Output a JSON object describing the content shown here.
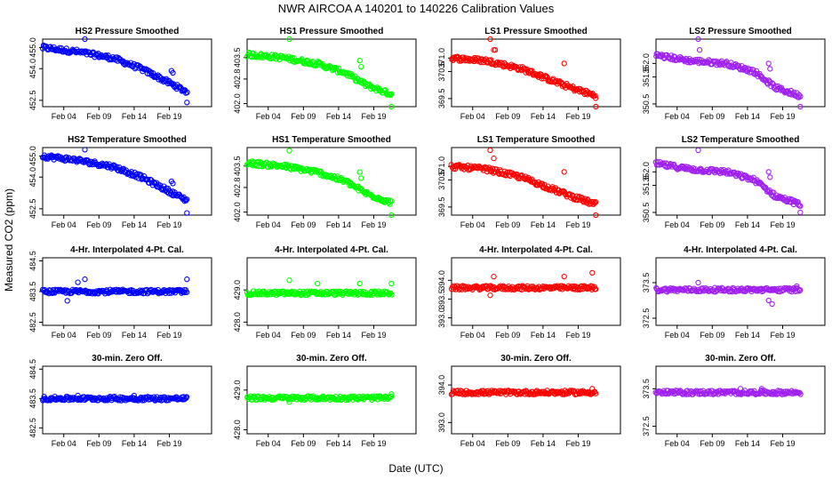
{
  "title": "NWR   AIRCOA A   140201 to 140226   Calibration Values",
  "xlabel": "Date (UTC)",
  "ylabel": "Measured CO2 (ppm)",
  "x_ticks": [
    "Feb 04",
    "Feb 09",
    "Feb 14",
    "Feb 19"
  ],
  "colors": {
    "HS2": "#0000ff",
    "HS1": "#00ff00",
    "LS1": "#ff0000",
    "LS2": "#a020f0",
    "frame": "#000000"
  },
  "chart_data": [
    {
      "type": "scatter",
      "id": "hs2-pressure",
      "title": "HS2 Pressure Smoothed",
      "tank": "HS2",
      "color": "#0000ff",
      "xlim": [
        0,
        24
      ],
      "ylim": [
        452.2,
        455.4
      ],
      "yticks": [
        452.5,
        454.0,
        455.0
      ],
      "ytick_labels": [
        "452.5",
        "454.0",
        "455.0"
      ],
      "series": {
        "name": "HS2",
        "x_range": [
          0,
          20.5
        ],
        "trend": [
          [
            0,
            455.0
          ],
          [
            5,
            454.8
          ],
          [
            10,
            454.5
          ],
          [
            14,
            454.0
          ],
          [
            17,
            453.5
          ],
          [
            20.5,
            452.9
          ]
        ],
        "outliers": [
          [
            6,
            455.4
          ],
          [
            18.3,
            453.9
          ],
          [
            18.5,
            453.8
          ],
          [
            20.5,
            452.4
          ]
        ]
      }
    },
    {
      "type": "scatter",
      "id": "hs1-pressure",
      "title": "HS1 Pressure Smoothed",
      "tank": "HS1",
      "color": "#00ff00",
      "xlim": [
        0,
        24
      ],
      "ylim": [
        401.9,
        404.1
      ],
      "yticks": [
        402.0,
        402.8,
        403.5
      ],
      "ytick_labels": [
        "402.0",
        "402.8",
        "403.5"
      ],
      "series": {
        "name": "HS1",
        "x_range": [
          0,
          20.5
        ],
        "trend": [
          [
            0,
            403.6
          ],
          [
            5,
            403.5
          ],
          [
            10,
            403.3
          ],
          [
            14,
            403.0
          ],
          [
            17,
            402.6
          ],
          [
            20.5,
            402.3
          ]
        ],
        "outliers": [
          [
            6,
            404.1
          ],
          [
            16,
            403.4
          ],
          [
            16.2,
            403.2
          ],
          [
            20.5,
            401.9
          ]
        ]
      }
    },
    {
      "type": "scatter",
      "id": "ls1-pressure",
      "title": "LS1 Pressure Smoothed",
      "tank": "LS1",
      "color": "#ff0000",
      "xlim": [
        0,
        24
      ],
      "ylim": [
        369.2,
        371.7
      ],
      "yticks": [
        369.5,
        370.5,
        371.0
      ],
      "ytick_labels": [
        "369.5",
        "370.5",
        "371.0"
      ],
      "series": {
        "name": "LS1",
        "x_range": [
          0,
          20.5
        ],
        "trend": [
          [
            0,
            371.0
          ],
          [
            5,
            370.9
          ],
          [
            10,
            370.6
          ],
          [
            14,
            370.2
          ],
          [
            17,
            369.9
          ],
          [
            20.5,
            369.6
          ]
        ],
        "outliers": [
          [
            5.5,
            371.7
          ],
          [
            6,
            371.3
          ],
          [
            6.2,
            371.3
          ],
          [
            16,
            370.8
          ],
          [
            20.5,
            369.2
          ]
        ]
      }
    },
    {
      "type": "scatter",
      "id": "ls2-pressure",
      "title": "LS2 Pressure Smoothed",
      "tank": "LS2",
      "color": "#a020f0",
      "xlim": [
        0,
        24
      ],
      "ylim": [
        350.4,
        352.9
      ],
      "yticks": [
        350.5,
        351.5,
        352.0
      ],
      "ytick_labels": [
        "350.5",
        "351.5",
        "352.0"
      ],
      "series": {
        "name": "LS2",
        "x_range": [
          0,
          20.5
        ],
        "trend": [
          [
            0,
            352.3
          ],
          [
            5,
            352.1
          ],
          [
            10,
            352.0
          ],
          [
            14,
            351.7
          ],
          [
            17,
            351.1
          ],
          [
            20.5,
            350.8
          ]
        ],
        "outliers": [
          [
            6,
            352.9
          ],
          [
            6.2,
            352.5
          ],
          [
            16,
            352.0
          ],
          [
            16.2,
            351.8
          ],
          [
            20.5,
            350.4
          ]
        ]
      }
    },
    {
      "type": "scatter",
      "id": "hs2-temperature",
      "title": "HS2 Temperature Smoothed",
      "tank": "HS2",
      "color": "#0000ff",
      "xlim": [
        0,
        24
      ],
      "ylim": [
        452.2,
        455.4
      ],
      "yticks": [
        452.5,
        454.0,
        455.0
      ],
      "ytick_labels": [
        "452.5",
        "454.0",
        "455.0"
      ],
      "series": {
        "name": "HS2",
        "x_range": [
          0,
          20.5
        ],
        "trend": [
          [
            0,
            455.0
          ],
          [
            5,
            454.8
          ],
          [
            10,
            454.5
          ],
          [
            14,
            454.0
          ],
          [
            17,
            453.5
          ],
          [
            20.5,
            452.9
          ]
        ],
        "outliers": [
          [
            6,
            455.3
          ],
          [
            18.3,
            453.8
          ],
          [
            18.5,
            453.7
          ],
          [
            20.5,
            452.3
          ]
        ]
      }
    },
    {
      "type": "scatter",
      "id": "hs1-temperature",
      "title": "HS1 Temperature Smoothed",
      "tank": "HS1",
      "color": "#00ff00",
      "xlim": [
        0,
        24
      ],
      "ylim": [
        401.9,
        404.1
      ],
      "yticks": [
        402.0,
        402.8,
        403.5
      ],
      "ytick_labels": [
        "402.0",
        "402.8",
        "403.5"
      ],
      "series": {
        "name": "HS1",
        "x_range": [
          0,
          20.5
        ],
        "trend": [
          [
            0,
            403.6
          ],
          [
            5,
            403.5
          ],
          [
            10,
            403.3
          ],
          [
            14,
            403.0
          ],
          [
            17,
            402.6
          ],
          [
            20.5,
            402.3
          ]
        ],
        "outliers": [
          [
            6,
            404.0
          ],
          [
            16,
            403.3
          ],
          [
            16.2,
            403.1
          ],
          [
            20.5,
            401.9
          ]
        ]
      }
    },
    {
      "type": "scatter",
      "id": "ls1-temperature",
      "title": "LS1 Temperature Smoothed",
      "tank": "LS1",
      "color": "#ff0000",
      "xlim": [
        0,
        24
      ],
      "ylim": [
        369.2,
        371.7
      ],
      "yticks": [
        369.5,
        370.5,
        371.0
      ],
      "ytick_labels": [
        "369.5",
        "370.5",
        "371.0"
      ],
      "series": {
        "name": "LS1",
        "x_range": [
          0,
          20.5
        ],
        "trend": [
          [
            0,
            371.0
          ],
          [
            5,
            370.9
          ],
          [
            10,
            370.6
          ],
          [
            14,
            370.2
          ],
          [
            17,
            369.9
          ],
          [
            20.5,
            369.6
          ]
        ],
        "outliers": [
          [
            5.5,
            371.6
          ],
          [
            6,
            371.3
          ],
          [
            16,
            370.8
          ],
          [
            20.5,
            369.2
          ]
        ]
      }
    },
    {
      "type": "scatter",
      "id": "ls2-temperature",
      "title": "LS2 Temperature Smoothed",
      "tank": "LS2",
      "color": "#a020f0",
      "xlim": [
        0,
        24
      ],
      "ylim": [
        350.4,
        352.9
      ],
      "yticks": [
        350.5,
        351.5,
        352.0
      ],
      "ytick_labels": [
        "350.5",
        "351.5",
        "352.0"
      ],
      "series": {
        "name": "LS2",
        "x_range": [
          0,
          20.5
        ],
        "trend": [
          [
            0,
            352.3
          ],
          [
            5,
            352.1
          ],
          [
            10,
            352.0
          ],
          [
            14,
            351.7
          ],
          [
            17,
            351.1
          ],
          [
            20.5,
            350.8
          ]
        ],
        "outliers": [
          [
            6,
            352.8
          ],
          [
            16,
            352.0
          ],
          [
            16.2,
            351.8
          ],
          [
            20.5,
            350.5
          ]
        ]
      }
    },
    {
      "type": "scatter",
      "id": "hs2-4pt",
      "title": "4-Hr. Interpolated 4-Pt. Cal.",
      "tank": "HS2",
      "color": "#0000ff",
      "xlim": [
        0,
        24
      ],
      "ylim": [
        482.4,
        484.6
      ],
      "yticks": [
        482.5,
        483.5,
        484.5
      ],
      "ytick_labels": [
        "482.5",
        "483.5",
        "484.5"
      ],
      "series": {
        "name": "HS2",
        "x_range": [
          0,
          20.5
        ],
        "trend": [
          [
            0,
            483.5
          ],
          [
            20.5,
            483.5
          ]
        ],
        "outliers": [
          [
            5,
            483.8
          ],
          [
            6,
            483.9
          ],
          [
            3.5,
            483.2
          ],
          [
            20.5,
            483.9
          ]
        ]
      }
    },
    {
      "type": "scatter",
      "id": "hs1-4pt",
      "title": "4-Hr. Interpolated 4-Pt. Cal.",
      "tank": "HS1",
      "color": "#00ff00",
      "xlim": [
        0,
        24
      ],
      "ylim": [
        427.9,
        430.0
      ],
      "yticks": [
        428.0,
        429.0
      ],
      "ytick_labels": [
        "428.0",
        "429.0"
      ],
      "series": {
        "name": "HS1",
        "x_range": [
          0,
          20.5
        ],
        "trend": [
          [
            0,
            428.9
          ],
          [
            20.5,
            428.9
          ]
        ],
        "outliers": [
          [
            6,
            429.3
          ],
          [
            10,
            429.2
          ],
          [
            16,
            429.2
          ],
          [
            20.5,
            429.2
          ]
        ]
      }
    },
    {
      "type": "scatter",
      "id": "ls1-4pt",
      "title": "4-Hr. Interpolated 4-Pt. Cal.",
      "tank": "LS1",
      "color": "#ff0000",
      "xlim": [
        0,
        24
      ],
      "ylim": [
        392.8,
        394.6
      ],
      "yticks": [
        393.0,
        393.5,
        394.0
      ],
      "ytick_labels": [
        "393.0",
        "393.5",
        "394.0"
      ],
      "series": {
        "name": "LS1",
        "x_range": [
          0,
          20.5
        ],
        "trend": [
          [
            0,
            393.8
          ],
          [
            20.5,
            393.8
          ]
        ],
        "outliers": [
          [
            6,
            394.1
          ],
          [
            16,
            394.1
          ],
          [
            20,
            394.2
          ],
          [
            5.5,
            393.6
          ]
        ]
      }
    },
    {
      "type": "scatter",
      "id": "ls2-4pt",
      "title": "4-Hr. Interpolated 4-Pt. Cal.",
      "tank": "LS2",
      "color": "#a020f0",
      "xlim": [
        0,
        24
      ],
      "ylim": [
        372.3,
        374.2
      ],
      "yticks": [
        372.5,
        373.5
      ],
      "ytick_labels": [
        "372.5",
        "373.5"
      ],
      "series": {
        "name": "LS2",
        "x_range": [
          0,
          20.5
        ],
        "trend": [
          [
            0,
            373.3
          ],
          [
            20.5,
            373.3
          ]
        ],
        "outliers": [
          [
            6,
            373.5
          ],
          [
            16,
            373.0
          ],
          [
            16.5,
            372.9
          ],
          [
            20,
            373.4
          ]
        ]
      }
    },
    {
      "type": "scatter",
      "id": "hs2-zero",
      "title": "30-min. Zero Off.",
      "tank": "HS2",
      "color": "#0000ff",
      "xlim": [
        0,
        24
      ],
      "ylim": [
        482.3,
        484.6
      ],
      "yticks": [
        482.5,
        483.5,
        484.5
      ],
      "ytick_labels": [
        "482.5",
        "483.5",
        "484.5"
      ],
      "series": {
        "name": "HS2",
        "x_range": [
          0,
          20.5
        ],
        "trend": [
          [
            0,
            483.5
          ],
          [
            20.5,
            483.5
          ]
        ],
        "outliers": [
          [
            5,
            483.6
          ],
          [
            13,
            483.6
          ]
        ]
      }
    },
    {
      "type": "scatter",
      "id": "hs1-zero",
      "title": "30-min. Zero Off.",
      "tank": "HS1",
      "color": "#00ff00",
      "xlim": [
        0,
        24
      ],
      "ylim": [
        427.9,
        429.6
      ],
      "yticks": [
        428.0,
        429.0
      ],
      "ytick_labels": [
        "428.0",
        "429.0"
      ],
      "series": {
        "name": "HS1",
        "x_range": [
          0,
          20.5
        ],
        "trend": [
          [
            0,
            428.8
          ],
          [
            20.5,
            428.8
          ]
        ],
        "outliers": [
          [
            6,
            428.7
          ],
          [
            20.5,
            428.9
          ]
        ]
      }
    },
    {
      "type": "scatter",
      "id": "ls1-zero",
      "title": "30-min. Zero Off.",
      "tank": "LS1",
      "color": "#ff0000",
      "xlim": [
        0,
        24
      ],
      "ylim": [
        392.7,
        394.5
      ],
      "yticks": [
        393.0,
        394.0
      ],
      "ytick_labels": [
        "393.0",
        "394.0"
      ],
      "series": {
        "name": "LS1",
        "x_range": [
          0,
          20.5
        ],
        "trend": [
          [
            0,
            393.8
          ],
          [
            20.5,
            393.8
          ]
        ],
        "outliers": [
          [
            20,
            393.9
          ]
        ]
      }
    },
    {
      "type": "scatter",
      "id": "ls2-zero",
      "title": "30-min. Zero Off.",
      "tank": "LS2",
      "color": "#a020f0",
      "xlim": [
        0,
        24
      ],
      "ylim": [
        372.3,
        374.1
      ],
      "yticks": [
        372.5,
        373.5
      ],
      "ytick_labels": [
        "372.5",
        "373.5"
      ],
      "series": {
        "name": "LS2",
        "x_range": [
          0,
          20.5
        ],
        "trend": [
          [
            0,
            373.4
          ],
          [
            20.5,
            373.4
          ]
        ],
        "outliers": [
          [
            12,
            373.5
          ],
          [
            15,
            373.5
          ]
        ]
      }
    }
  ]
}
